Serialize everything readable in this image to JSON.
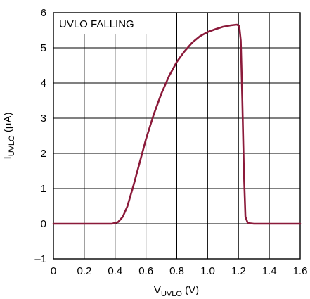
{
  "chart_data": {
    "type": "line",
    "annotation": "UVLO FALLING",
    "xlabel": {
      "main": "V",
      "sub": "UVLO",
      "unit": " (V)"
    },
    "ylabel": {
      "main": "I",
      "sub": "UVLO",
      "unit": " (µA)"
    },
    "xlim": [
      0,
      1.6
    ],
    "ylim": [
      -1,
      6
    ],
    "xticks": [
      0,
      0.2,
      0.4,
      0.6,
      0.8,
      1.0,
      1.2,
      1.4,
      1.6
    ],
    "xtick_labels": [
      "0",
      "0.2",
      "0.4",
      "0.6",
      "0.8",
      "1.0",
      "1.2",
      "1.4",
      "1.6"
    ],
    "yticks": [
      -1,
      0,
      1,
      2,
      3,
      4,
      5,
      6
    ],
    "ytick_labels": [
      "–1",
      "0",
      "1",
      "2",
      "3",
      "4",
      "5",
      "6"
    ],
    "grid": true,
    "series": [
      {
        "color": "#8b1a3a",
        "x": [
          0,
          0.2,
          0.38,
          0.42,
          0.45,
          0.48,
          0.52,
          0.56,
          0.6,
          0.65,
          0.7,
          0.75,
          0.8,
          0.85,
          0.9,
          0.95,
          1.0,
          1.05,
          1.1,
          1.15,
          1.19,
          1.205,
          1.215,
          1.225,
          1.235,
          1.245,
          1.26,
          1.3,
          1.4,
          1.6
        ],
        "y": [
          0,
          0,
          0,
          0.05,
          0.2,
          0.5,
          1.1,
          1.75,
          2.4,
          3.1,
          3.7,
          4.2,
          4.6,
          4.9,
          5.15,
          5.33,
          5.45,
          5.53,
          5.6,
          5.64,
          5.66,
          5.62,
          5.2,
          3.5,
          1.5,
          0.2,
          0.02,
          0,
          0,
          0
        ]
      }
    ]
  }
}
